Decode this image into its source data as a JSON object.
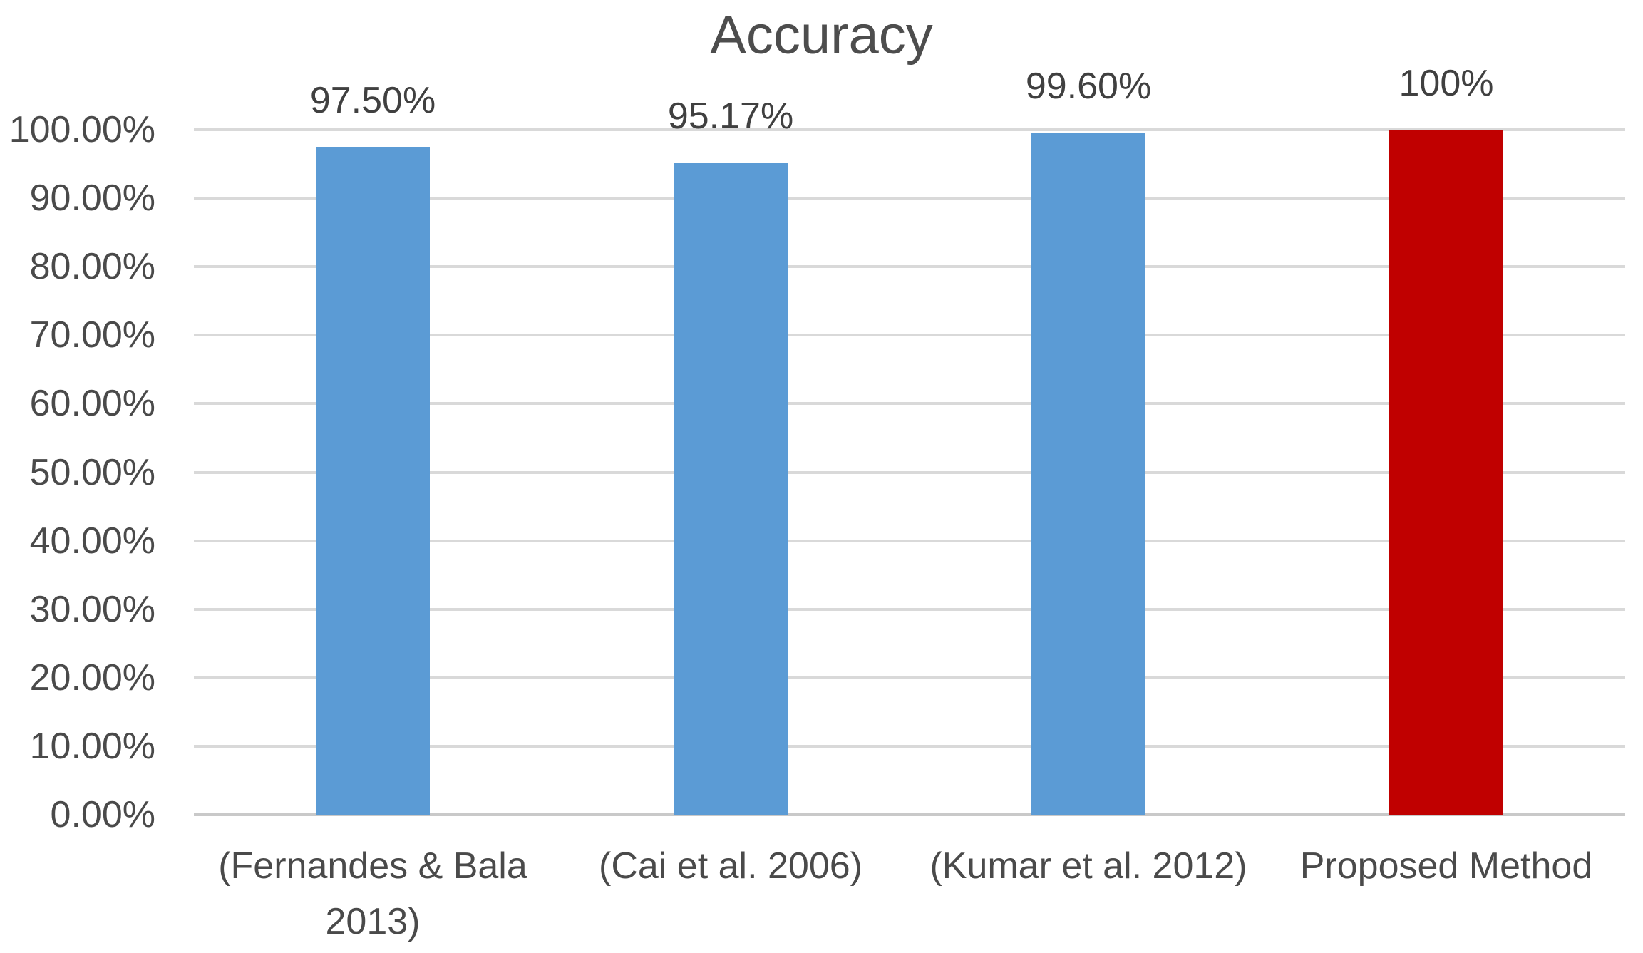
{
  "chart_data": {
    "type": "bar",
    "title": "Accuracy",
    "categories": [
      "(Fernandes & Bala 2013)",
      "(Cai et al. 2006)",
      "(Kumar et al. 2012)",
      "Proposed Method"
    ],
    "values": [
      97.5,
      95.17,
      99.6,
      100
    ],
    "data_labels": [
      "97.50%",
      "95.17%",
      "99.60%",
      "100%"
    ],
    "bar_colors": [
      "#5B9BD5",
      "#5B9BD5",
      "#5B9BD5",
      "#C00000"
    ],
    "ytick_labels": [
      "0.00%",
      "10.00%",
      "20.00%",
      "30.00%",
      "40.00%",
      "50.00%",
      "60.00%",
      "70.00%",
      "80.00%",
      "90.00%",
      "100.00%"
    ],
    "ylim": [
      0,
      100
    ],
    "ytick_step": 10,
    "grid": true,
    "legend": "none",
    "xlabel": "",
    "ylabel": ""
  },
  "colors": {
    "bar_blue": "#5B9BD5",
    "bar_red": "#C00000",
    "gridline": "#D9D9D9",
    "axis_line": "#C9C9C9",
    "label_text": "#4A4A4A",
    "data_label_text": "#404040",
    "title_text": "#4D4D4D"
  }
}
